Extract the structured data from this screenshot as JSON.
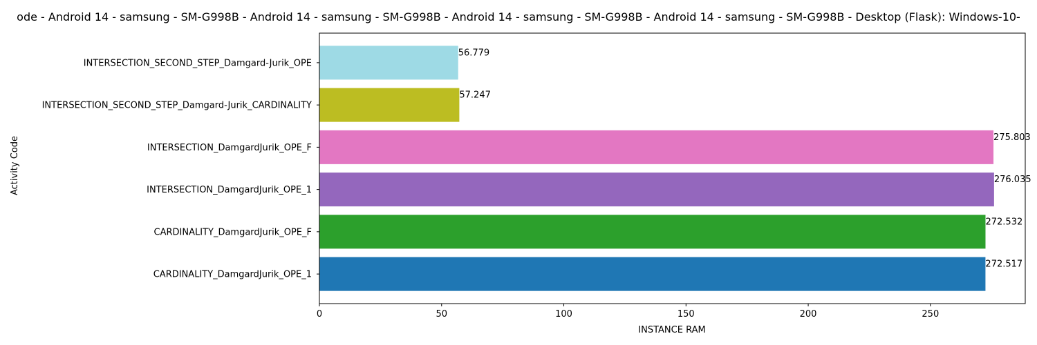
{
  "chart_data": {
    "type": "bar",
    "orientation": "horizontal",
    "title": "ode - Android 14 - samsung - SM-G998B - Android 14 - samsung - SM-G998B - Android 14 - samsung - SM-G998B - Android 14 - samsung - SM-G998B - Desktop (Flask): Windows-10-",
    "xlabel": "INSTANCE RAM",
    "ylabel": "Activity Code",
    "xlim": [
      0,
      288.8
    ],
    "xticks": [
      0,
      50,
      100,
      150,
      200,
      250
    ],
    "categories": [
      "CARDINALITY_DamgardJurik_OPE_1",
      "CARDINALITY_DamgardJurik_OPE_F",
      "INTERSECTION_DamgardJurik_OPE_1",
      "INTERSECTION_DamgardJurik_OPE_F",
      "INTERSECTION_SECOND_STEP_Damgard-Jurik_CARDINALITY",
      "INTERSECTION_SECOND_STEP_Damgard-Jurik_OPE"
    ],
    "values": [
      272.517,
      272.532,
      276.035,
      275.803,
      57.247,
      56.779
    ],
    "data_labels": [
      "272.517",
      "272.532",
      "276.035",
      "275.803",
      "57.247",
      "56.779"
    ],
    "colors": [
      "#1f77b4",
      "#2ca02c",
      "#9467bd",
      "#e377c2",
      "#bcbd22",
      "#9edae5"
    ],
    "grid": false,
    "legend": "none"
  }
}
